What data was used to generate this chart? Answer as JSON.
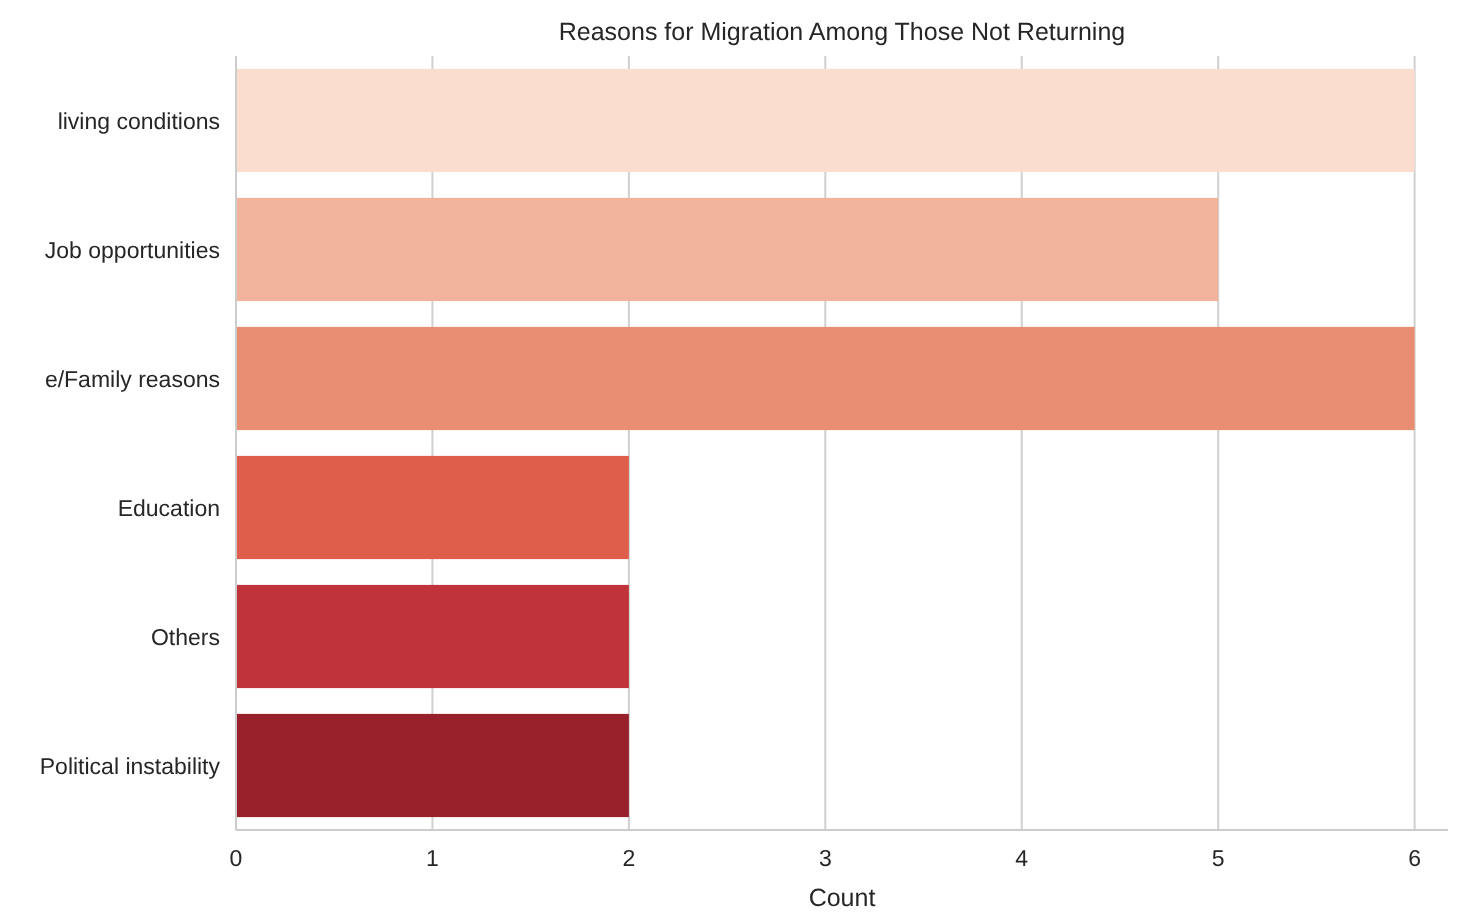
{
  "chart_data": {
    "type": "bar",
    "orientation": "horizontal",
    "title": "Reasons for Migration Among Those Not Returning",
    "xlabel": "Count",
    "categories": [
      "living conditions",
      "Job opportunities",
      "e/Family reasons",
      "Education",
      "Others",
      "Political instability"
    ],
    "values": [
      6,
      5,
      6,
      2,
      2,
      2
    ],
    "colors": [
      "#fbddd0",
      "#f2b39c",
      "#e98d73",
      "#de5e4b",
      "#c0333a",
      "#97202a"
    ],
    "xlim": [
      0,
      6.17
    ],
    "xticks": [
      0,
      1,
      2,
      3,
      4,
      5,
      6
    ],
    "grid": "x"
  }
}
